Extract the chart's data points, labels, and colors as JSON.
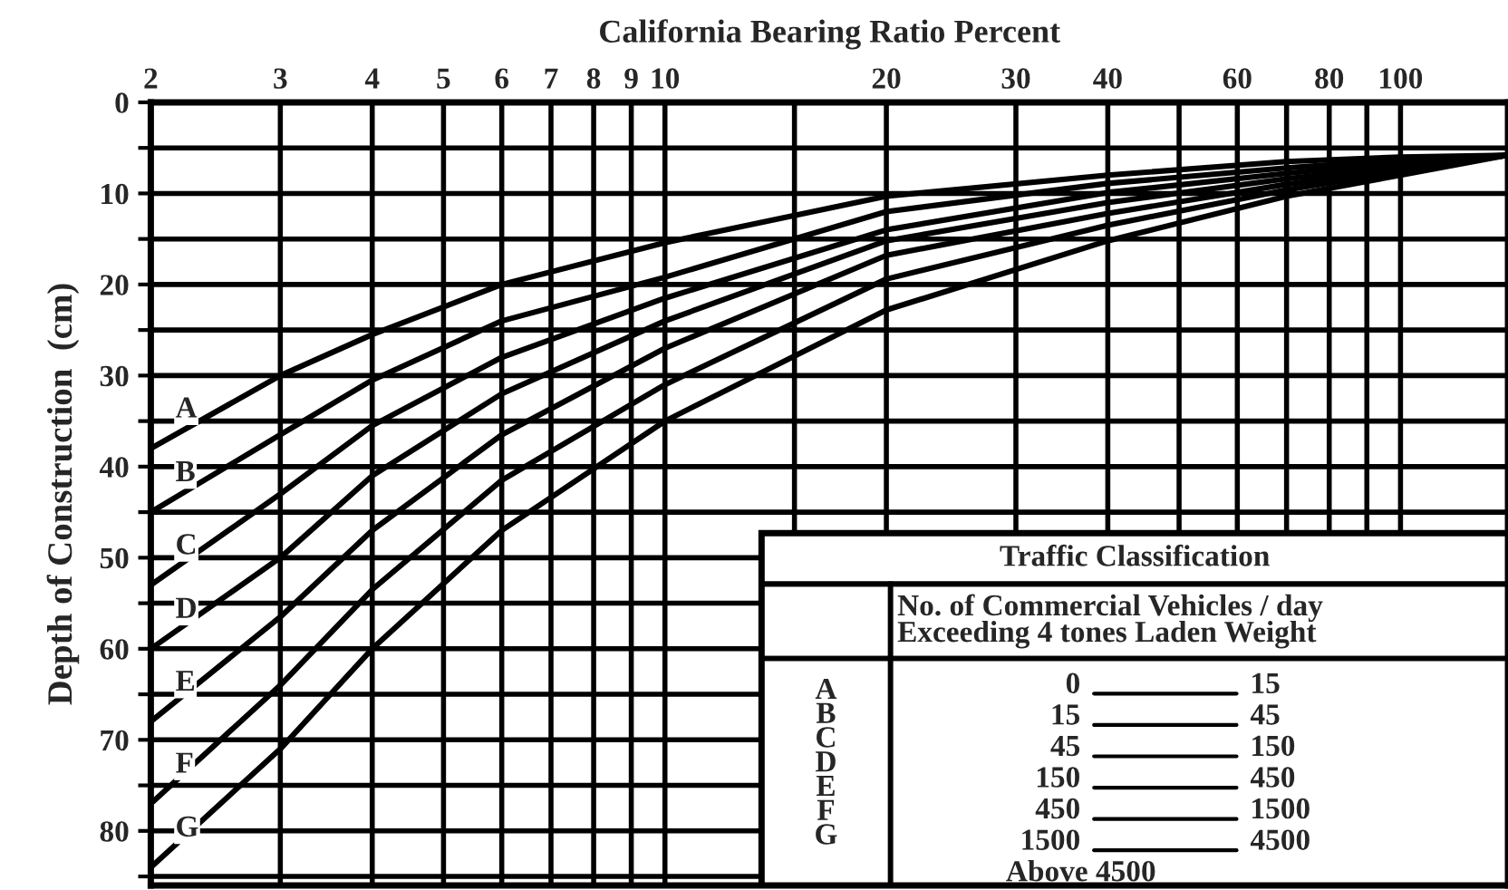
{
  "chart_data": {
    "type": "line",
    "log": "x",
    "xlabel": "California Bearing Ratio Percent",
    "ylabel": "Depth of Construction  (cm)",
    "x": [
      2,
      3,
      4,
      6,
      10,
      20,
      40,
      70,
      100,
      140
    ],
    "xlim": [
      2,
      140
    ],
    "ylim": [
      86,
      0
    ],
    "xticks": [
      2,
      3,
      4,
      5,
      6,
      7,
      8,
      9,
      10,
      {
        "value": 15,
        "label": null
      },
      20,
      30,
      40,
      {
        "value": 50,
        "label": null
      },
      60,
      {
        "value": 70,
        "label": null
      },
      80,
      {
        "value": 90,
        "label": null
      },
      100
    ],
    "yticks": [
      0,
      {
        "value": 5,
        "label": null
      },
      10,
      {
        "value": 15,
        "label": null
      },
      20,
      {
        "value": 25,
        "label": null
      },
      30,
      {
        "value": 35,
        "label": null
      },
      40,
      {
        "value": 45,
        "label": null
      },
      50,
      {
        "value": 55,
        "label": null
      },
      60,
      {
        "value": 65,
        "label": null
      },
      70,
      {
        "value": 75,
        "label": null
      },
      80,
      {
        "value": 85,
        "label": null
      }
    ],
    "grid": true,
    "marker": "none",
    "line_style": "solid",
    "series": [
      {
        "name": "A",
        "color": "#000000",
        "values": [
          38,
          30,
          25.5,
          20,
          15.4,
          10.3,
          8.0,
          6.5,
          6,
          5.8
        ]
      },
      {
        "name": "B",
        "color": "#000000",
        "values": [
          45,
          36.5,
          30.5,
          24,
          19.2,
          12,
          8.9,
          7.2,
          6.3,
          5.8
        ]
      },
      {
        "name": "C",
        "color": "#000000",
        "values": [
          53,
          43,
          35.5,
          28,
          21.5,
          14,
          9.9,
          7.8,
          6.6,
          5.8
        ]
      },
      {
        "name": "D",
        "color": "#000000",
        "values": [
          60,
          50,
          41,
          32,
          24,
          15.2,
          11,
          8.4,
          7,
          5.8
        ]
      },
      {
        "name": "E",
        "color": "#000000",
        "values": [
          68,
          56.5,
          47,
          36.5,
          27,
          16.8,
          12.2,
          9,
          7.3,
          5.8
        ]
      },
      {
        "name": "F",
        "color": "#000000",
        "values": [
          77,
          64,
          53.5,
          41.5,
          31,
          19.4,
          13.5,
          9.6,
          7.6,
          5.8
        ]
      },
      {
        "name": "G",
        "color": "#000000",
        "values": [
          84,
          71,
          60,
          47,
          35,
          22.8,
          15.2,
          10.3,
          8,
          5.8
        ]
      }
    ],
    "annotations": [
      "Traffic Classification",
      "No. of Commercial Vehicles / day\nExceeding 4 tones Laden Weight",
      "A\nB\nC\nD\nE\nF\nG",
      "0",
      "15",
      "15",
      "45",
      "45",
      "150",
      "150",
      "450",
      "450",
      "1500",
      "1500",
      "4500",
      "Above 4500"
    ]
  }
}
